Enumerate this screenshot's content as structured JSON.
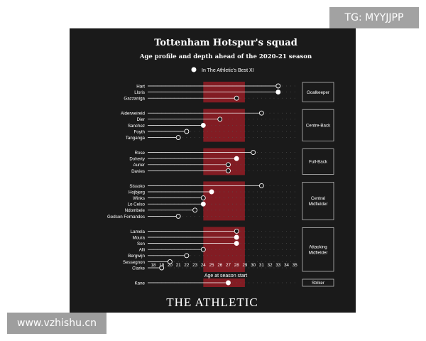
{
  "watermarks": {
    "top": "TG: MYYJJPP",
    "bottom": "www.vzhishu.cn"
  },
  "brand": "THE ATHLETIC",
  "colors": {
    "background": "#1a1a1a",
    "peak_band": "#8b1c24",
    "line": "#ffffff",
    "text": "#ffffff"
  },
  "chart_data": {
    "type": "scatter",
    "title": "Tottenham Hotspur's squad",
    "subtitle": "Age profile and depth ahead of the 2020-21 season",
    "legend": {
      "label": "In The Athletic's Best XI",
      "placement": "top"
    },
    "xlabel": "Age at season start",
    "xlim": [
      18,
      35
    ],
    "x_ticks": [
      18,
      19,
      20,
      21,
      22,
      23,
      24,
      25,
      26,
      27,
      28,
      29,
      30,
      31,
      32,
      33,
      34,
      35
    ],
    "peak_age_band": [
      24,
      29
    ],
    "grid": true,
    "groups": [
      {
        "name": "Goalkeeper",
        "players": [
          {
            "name": "Hart",
            "age": 33,
            "best_xi": false
          },
          {
            "name": "Lloris",
            "age": 33,
            "best_xi": true
          },
          {
            "name": "Gazzaniga",
            "age": 28,
            "best_xi": false
          }
        ]
      },
      {
        "name": "Centre-Back",
        "players": [
          {
            "name": "Alderweireld",
            "age": 31,
            "best_xi": false
          },
          {
            "name": "Dier",
            "age": 26,
            "best_xi": false
          },
          {
            "name": "Sanchez",
            "age": 24,
            "best_xi": true
          },
          {
            "name": "Foyth",
            "age": 22,
            "best_xi": false
          },
          {
            "name": "Tanganga",
            "age": 21,
            "best_xi": false
          }
        ]
      },
      {
        "name": "Full-Back",
        "players": [
          {
            "name": "Rose",
            "age": 30,
            "best_xi": false
          },
          {
            "name": "Doherty",
            "age": 28,
            "best_xi": true
          },
          {
            "name": "Aurier",
            "age": 27,
            "best_xi": false
          },
          {
            "name": "Davies",
            "age": 27,
            "best_xi": false
          }
        ]
      },
      {
        "name": "Central Midfielder",
        "players": [
          {
            "name": "Sissoko",
            "age": 31,
            "best_xi": false
          },
          {
            "name": "Hojbjerg",
            "age": 25,
            "best_xi": true
          },
          {
            "name": "Winks",
            "age": 24,
            "best_xi": false
          },
          {
            "name": "Lo Celso",
            "age": 24,
            "best_xi": true
          },
          {
            "name": "Ndombele",
            "age": 23,
            "best_xi": false
          },
          {
            "name": "Gedson Fernandes",
            "age": 21,
            "best_xi": false
          }
        ]
      },
      {
        "name": "Attacking Midfielder",
        "players": [
          {
            "name": "Lamela",
            "age": 28,
            "best_xi": false
          },
          {
            "name": "Moura",
            "age": 28,
            "best_xi": true
          },
          {
            "name": "Son",
            "age": 28,
            "best_xi": true
          },
          {
            "name": "Alli",
            "age": 24,
            "best_xi": false
          },
          {
            "name": "Bergwijn",
            "age": 22,
            "best_xi": false
          },
          {
            "name": "Sessegnon",
            "age": 20,
            "best_xi": false
          },
          {
            "name": "Clarke",
            "age": 19,
            "best_xi": false
          }
        ]
      },
      {
        "name": "Striker",
        "players": [
          {
            "name": "Kane",
            "age": 27,
            "best_xi": true
          }
        ]
      }
    ]
  }
}
